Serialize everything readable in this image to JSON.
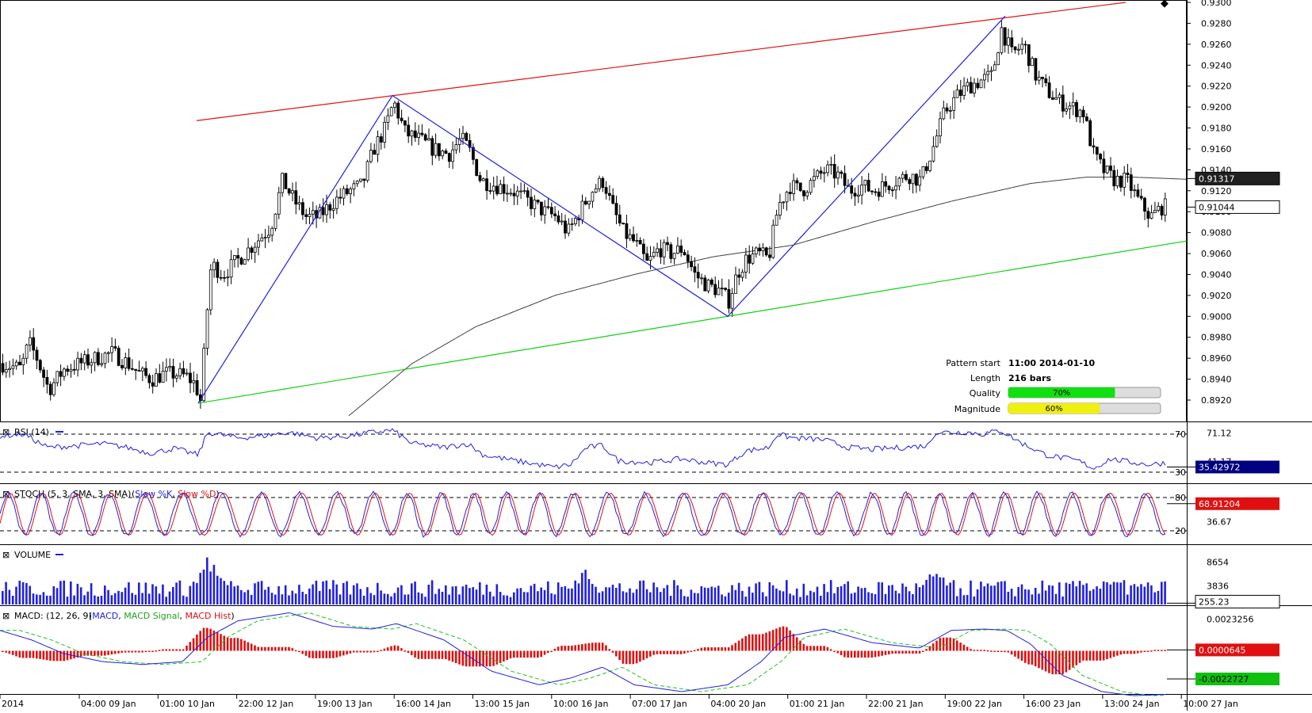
{
  "chart_data": [
    {
      "type": "candlestick",
      "panel": "price",
      "price_axis": {
        "ylim": [
          0.93,
          0.93
        ],
        "range": [
          0.8905,
          0.93
        ],
        "ticks": [
          "0.9300",
          "0.9280",
          "0.9260",
          "0.9240",
          "0.9220",
          "0.9200",
          "0.9180",
          "0.9160",
          "0.9140",
          "0.9120",
          "0.9100",
          "0.9080",
          "0.9060",
          "0.9040",
          "0.9020",
          "0.9000",
          "0.8980",
          "0.8960",
          "0.8940",
          "0.8920"
        ],
        "tick_values": [
          0.93,
          0.928,
          0.926,
          0.924,
          0.922,
          0.92,
          0.918,
          0.916,
          0.914,
          0.912,
          0.91,
          0.908,
          0.906,
          0.904,
          0.902,
          0.9,
          0.898,
          0.896,
          0.894,
          0.892
        ]
      },
      "time_axis": {
        "labels": [
          "2014",
          "04:00 09 Jan",
          "01:00 10 Jan",
          "22:00 12 Jan",
          "19:00 13 Jan",
          "16:00 14 Jan",
          "13:00 15 Jan",
          "10:00 16 Jan",
          "07:00 17 Jan",
          "04:00 20 Jan",
          "01:00 21 Jan",
          "22:00 21 Jan",
          "19:00 22 Jan",
          "16:00 23 Jan",
          "13:00 24 Jan",
          "10:00 27 Jan"
        ]
      },
      "price_anchors": [
        [
          0,
          0.8955
        ],
        [
          25,
          0.895
        ],
        [
          35,
          0.8975
        ],
        [
          45,
          0.896
        ],
        [
          60,
          0.893
        ],
        [
          80,
          0.895
        ],
        [
          100,
          0.8955
        ],
        [
          120,
          0.896
        ],
        [
          140,
          0.8965
        ],
        [
          160,
          0.8955
        ],
        [
          175,
          0.8945
        ],
        [
          190,
          0.894
        ],
        [
          205,
          0.8945
        ],
        [
          220,
          0.8945
        ],
        [
          235,
          0.8942
        ],
        [
          245,
          0.8935
        ],
        [
          252,
          0.8918
        ],
        [
          258,
          0.899
        ],
        [
          265,
          0.905
        ],
        [
          280,
          0.904
        ],
        [
          300,
          0.9055
        ],
        [
          320,
          0.907
        ],
        [
          340,
          0.9085
        ],
        [
          355,
          0.913
        ],
        [
          370,
          0.911
        ],
        [
          385,
          0.9095
        ],
        [
          400,
          0.9095
        ],
        [
          420,
          0.911
        ],
        [
          440,
          0.912
        ],
        [
          455,
          0.9125
        ],
        [
          470,
          0.916
        ],
        [
          485,
          0.918
        ],
        [
          495,
          0.9205
        ],
        [
          510,
          0.9175
        ],
        [
          525,
          0.917
        ],
        [
          545,
          0.916
        ],
        [
          565,
          0.9155
        ],
        [
          580,
          0.917
        ],
        [
          590,
          0.916
        ],
        [
          605,
          0.913
        ],
        [
          625,
          0.9125
        ],
        [
          645,
          0.912
        ],
        [
          665,
          0.911
        ],
        [
          685,
          0.91
        ],
        [
          700,
          0.9095
        ],
        [
          715,
          0.908
        ],
        [
          730,
          0.91
        ],
        [
          745,
          0.912
        ],
        [
          760,
          0.913
        ],
        [
          770,
          0.9105
        ],
        [
          785,
          0.908
        ],
        [
          800,
          0.907
        ],
        [
          815,
          0.905
        ],
        [
          830,
          0.9065
        ],
        [
          845,
          0.906
        ],
        [
          860,
          0.9065
        ],
        [
          875,
          0.904
        ],
        [
          890,
          0.903
        ],
        [
          905,
          0.9025
        ],
        [
          918,
          0.9015
        ],
        [
          928,
          0.904
        ],
        [
          940,
          0.9055
        ],
        [
          955,
          0.906
        ],
        [
          968,
          0.9055
        ],
        [
          980,
          0.9105
        ],
        [
          995,
          0.9125
        ],
        [
          1010,
          0.912
        ],
        [
          1025,
          0.913
        ],
        [
          1040,
          0.914
        ],
        [
          1055,
          0.9135
        ],
        [
          1070,
          0.912
        ],
        [
          1085,
          0.9125
        ],
        [
          1100,
          0.912
        ],
        [
          1115,
          0.9125
        ],
        [
          1130,
          0.913
        ],
        [
          1145,
          0.9135
        ],
        [
          1160,
          0.913
        ],
        [
          1175,
          0.916
        ],
        [
          1190,
          0.9195
        ],
        [
          1205,
          0.921
        ],
        [
          1220,
          0.922
        ],
        [
          1235,
          0.9225
        ],
        [
          1250,
          0.923
        ],
        [
          1262,
          0.9275
        ],
        [
          1275,
          0.925
        ],
        [
          1290,
          0.926
        ],
        [
          1305,
          0.923
        ],
        [
          1320,
          0.9215
        ],
        [
          1335,
          0.9205
        ],
        [
          1350,
          0.92
        ],
        [
          1365,
          0.9195
        ],
        [
          1378,
          0.9155
        ],
        [
          1390,
          0.914
        ],
        [
          1405,
          0.913
        ],
        [
          1420,
          0.913
        ],
        [
          1435,
          0.911
        ],
        [
          1450,
          0.9095
        ],
        [
          1465,
          0.9105
        ],
        [
          1472,
          0.9104
        ]
      ],
      "ma_anchors": [
        [
          440,
          0.8905
        ],
        [
          520,
          0.8955
        ],
        [
          600,
          0.899
        ],
        [
          700,
          0.902
        ],
        [
          800,
          0.904
        ],
        [
          900,
          0.9057
        ],
        [
          1000,
          0.9068
        ],
        [
          1100,
          0.909
        ],
        [
          1200,
          0.911
        ],
        [
          1300,
          0.9127
        ],
        [
          1370,
          0.9133
        ],
        [
          1430,
          0.9133
        ],
        [
          1497,
          0.9131
        ]
      ],
      "pattern_lines": {
        "resistance": {
          "from": [
            248,
            0.9187
          ],
          "to": [
            1420,
            0.93
          ]
        },
        "support": {
          "from": [
            250,
            0.8917
          ],
          "to": [
            1497,
            0.9072
          ]
        },
        "zigzag": [
          [
            250,
            0.8917
          ],
          [
            495,
            0.9211
          ],
          [
            918,
            0.9
          ],
          [
            1268,
            0.9287
          ]
        ]
      },
      "current_price_label": "0.91044",
      "current_price_value": 0.91044,
      "ma_label": "0.91317",
      "ma_value": 0.91317,
      "pattern_info": {
        "pattern_start_label": "Pattern start",
        "pattern_start_value": "11:00 2014-01-10",
        "length_label": "Length",
        "length_value": "216 bars",
        "quality_label": "Quality",
        "quality_value": 70,
        "quality_text": "70%",
        "magnitude_label": "Magnitude",
        "magnitude_value": 60,
        "magnitude_text": "60%"
      },
      "colors": {
        "bull": "#208020",
        "bear": "#000000",
        "resistance": "#e01010",
        "support": "#10d010",
        "zigzag": "#2020e0",
        "ma": "#404040"
      }
    },
    {
      "type": "line",
      "panel": "rsi",
      "title": "RSI (14)",
      "ylim": [
        20,
        80
      ],
      "levels": [
        {
          "value": 70,
          "label": "70"
        },
        {
          "value": 30,
          "label": "30"
        }
      ],
      "axis_labels": [
        "71.12",
        "41.17"
      ],
      "axis_label_values": [
        71.12,
        41.17
      ],
      "current_label": "35.42972",
      "current_value": 35.42972,
      "color": "#2020e0",
      "anchors": [
        [
          0,
          68
        ],
        [
          30,
          70
        ],
        [
          60,
          56
        ],
        [
          100,
          58
        ],
        [
          130,
          60
        ],
        [
          160,
          56
        ],
        [
          190,
          50
        ],
        [
          220,
          55
        ],
        [
          250,
          48
        ],
        [
          262,
          72
        ],
        [
          300,
          66
        ],
        [
          330,
          68
        ],
        [
          365,
          72
        ],
        [
          400,
          66
        ],
        [
          440,
          68
        ],
        [
          470,
          72
        ],
        [
          495,
          74
        ],
        [
          520,
          60
        ],
        [
          560,
          56
        ],
        [
          590,
          60
        ],
        [
          610,
          48
        ],
        [
          650,
          42
        ],
        [
          700,
          35
        ],
        [
          720,
          38
        ],
        [
          740,
          56
        ],
        [
          760,
          58
        ],
        [
          780,
          42
        ],
        [
          820,
          40
        ],
        [
          860,
          44
        ],
        [
          890,
          40
        ],
        [
          918,
          38
        ],
        [
          940,
          52
        ],
        [
          970,
          56
        ],
        [
          980,
          70
        ],
        [
          1000,
          66
        ],
        [
          1040,
          64
        ],
        [
          1070,
          56
        ],
        [
          1100,
          54
        ],
        [
          1140,
          56
        ],
        [
          1170,
          58
        ],
        [
          1180,
          72
        ],
        [
          1220,
          72
        ],
        [
          1240,
          70
        ],
        [
          1262,
          74
        ],
        [
          1290,
          60
        ],
        [
          1320,
          48
        ],
        [
          1360,
          42
        ],
        [
          1380,
          34
        ],
        [
          1400,
          44
        ],
        [
          1430,
          40
        ],
        [
          1450,
          38
        ],
        [
          1472,
          40
        ]
      ]
    },
    {
      "type": "line",
      "panel": "stoch",
      "title": "STOCH (5, 3, SMA, 3, SMA)",
      "series": [
        {
          "name": "Slow %K",
          "color": "#2020e0"
        },
        {
          "name": "Slow %D",
          "color": "#e01010"
        }
      ],
      "ylim": [
        0,
        100
      ],
      "levels": [
        {
          "value": 80,
          "label": "80"
        },
        {
          "value": 20,
          "label": "20"
        }
      ],
      "axis_labels": [
        "36.67"
      ],
      "axis_label_values": [
        36.67
      ],
      "current_label": "68.91204",
      "current_value": 68.91204,
      "period_px": 45,
      "amplitude": 38
    },
    {
      "type": "bar",
      "panel": "volume",
      "title": "VOLUME",
      "color": "#2020e0",
      "ylim": [
        0,
        11500
      ],
      "axis_labels": [
        "8654",
        "3836"
      ],
      "axis_label_values": [
        8654,
        3836
      ],
      "current_label": "255.23",
      "current_value": 255.23,
      "peaks": [
        [
          262,
          10500
        ],
        [
          735,
          7600
        ],
        [
          1180,
          8000
        ],
        [
          1395,
          6000
        ]
      ]
    },
    {
      "type": "line",
      "panel": "macd",
      "title": "MACD: (12, 26, 9)",
      "series": [
        {
          "name": "MACD",
          "color": "#2020e0"
        },
        {
          "name": "MACD Signal",
          "color": "#20c020"
        },
        {
          "name": "MACD Hist",
          "color": "#e01010"
        }
      ],
      "ylim": [
        -0.003,
        0.003
      ],
      "axis_labels": [
        "0.0023256"
      ],
      "axis_label_values": [
        0.0023256
      ],
      "hist_label": "0.0000645",
      "hist_value": 6.45e-05,
      "macd_label": "-0.0022727",
      "macd_value": -0.0022727,
      "macd_anchors": [
        [
          0,
          0.0015
        ],
        [
          40,
          0.0008
        ],
        [
          80,
          -0.0002
        ],
        [
          130,
          -0.0008
        ],
        [
          180,
          -0.001
        ],
        [
          230,
          -0.0008
        ],
        [
          262,
          0.001
        ],
        [
          300,
          0.0022
        ],
        [
          365,
          0.0028
        ],
        [
          420,
          0.0018
        ],
        [
          470,
          0.0016
        ],
        [
          500,
          0.002
        ],
        [
          560,
          0.0008
        ],
        [
          620,
          -0.0015
        ],
        [
          680,
          -0.0025
        ],
        [
          720,
          -0.002
        ],
        [
          760,
          -0.0012
        ],
        [
          800,
          -0.0025
        ],
        [
          860,
          -0.003
        ],
        [
          918,
          -0.0025
        ],
        [
          960,
          -0.0008
        ],
        [
          990,
          0.001
        ],
        [
          1040,
          0.0016
        ],
        [
          1100,
          0.0006
        ],
        [
          1160,
          0.0002
        ],
        [
          1200,
          0.0015
        ],
        [
          1240,
          0.0016
        ],
        [
          1270,
          0.0015
        ],
        [
          1300,
          0.0005
        ],
        [
          1340,
          -0.0018
        ],
        [
          1390,
          -0.003
        ],
        [
          1430,
          -0.0033
        ],
        [
          1472,
          -0.0032
        ]
      ],
      "signal_lag": 25
    }
  ],
  "ui": {
    "collapse_glyph": "⊠",
    "dropdown_glyph": "◆"
  }
}
